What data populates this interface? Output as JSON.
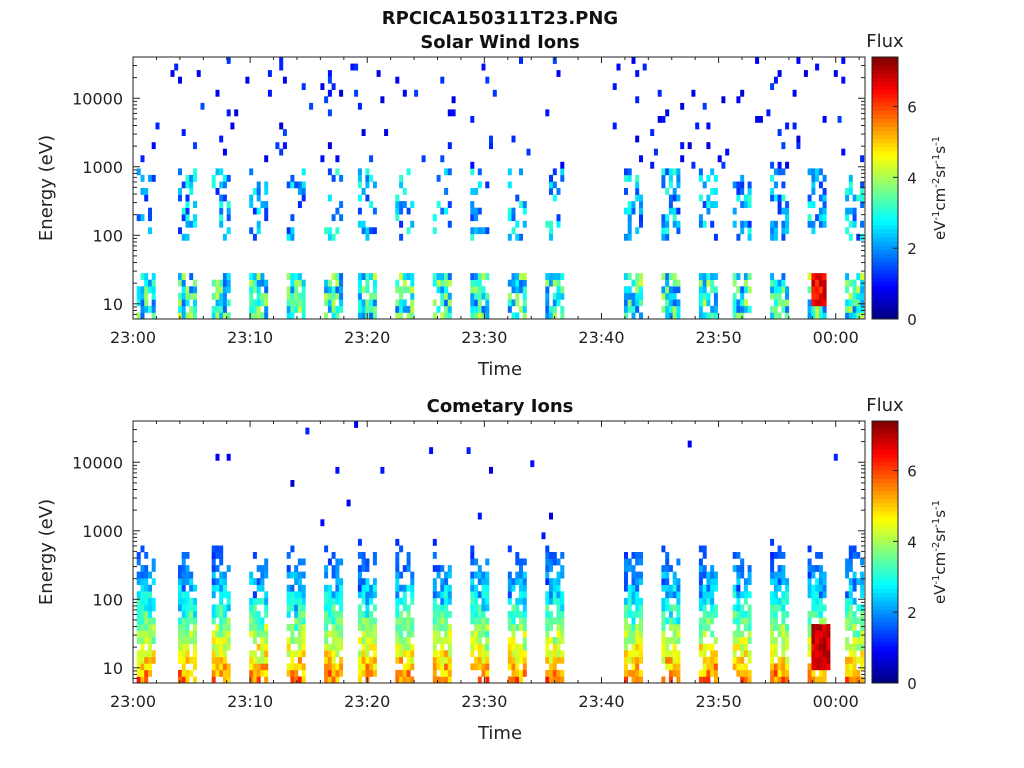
{
  "figure_title": "RPCICA150311T23.PNG",
  "colors": {
    "colormap": [
      "#00007f",
      "#0000ff",
      "#007fff",
      "#00ffff",
      "#7fff7f",
      "#ffff00",
      "#ff7f00",
      "#ff0000",
      "#7f0000"
    ]
  },
  "chart_data": [
    {
      "type": "heatmap",
      "title": "Solar Wind Ions",
      "xlabel": "Time",
      "ylabel": "Energy (eV)",
      "x_tick_labels": [
        "23:00",
        "23:10",
        "23:20",
        "23:30",
        "23:40",
        "23:50",
        "00:00"
      ],
      "x_tick_minutes": [
        0,
        10,
        20,
        30,
        40,
        50,
        60
      ],
      "xlim_minutes": [
        0,
        62.5
      ],
      "y_scale": "log",
      "y_tick_labels": [
        "10",
        "100",
        "1000",
        "10000"
      ],
      "y_tick_values": [
        10,
        100,
        1000,
        10000
      ],
      "ylim": [
        6,
        40000
      ],
      "colorbar": {
        "label": "Flux",
        "unit": "eV-1cm-2sr-1s-1",
        "tick_labels": [
          "0",
          "2",
          "4",
          "6"
        ],
        "tick_values": [
          0,
          2,
          4,
          6
        ],
        "range": [
          0,
          7.4
        ]
      },
      "sweep_start_minutes": [
        0.2,
        3.6,
        6.7,
        9.8,
        13.0,
        16.1,
        19.2,
        22.4,
        25.5,
        28.6,
        31.8,
        34.9,
        41.8,
        45.0,
        48.1,
        51.2,
        54.3,
        57.5,
        60.6
      ],
      "data_gap_minutes": [
        37.3,
        40.7
      ],
      "low_energy_band_eV": [
        6,
        30
      ],
      "low_energy_peak_flux": 4.3,
      "mid_band_eV": [
        90,
        900
      ],
      "mid_band_peak_flux": 3.2,
      "peak": {
        "time_minutes": 58.5,
        "energy_eV": 15,
        "flux": 7.0
      }
    },
    {
      "type": "heatmap",
      "title": "Cometary Ions",
      "xlabel": "Time",
      "ylabel": "Energy (eV)",
      "x_tick_labels": [
        "23:00",
        "23:10",
        "23:20",
        "23:30",
        "23:40",
        "23:50",
        "00:00"
      ],
      "x_tick_minutes": [
        0,
        10,
        20,
        30,
        40,
        50,
        60
      ],
      "xlim_minutes": [
        0,
        62.5
      ],
      "y_scale": "log",
      "y_tick_labels": [
        "10",
        "100",
        "1000",
        "10000"
      ],
      "y_tick_values": [
        10,
        100,
        1000,
        10000
      ],
      "ylim": [
        6,
        40000
      ],
      "colorbar": {
        "label": "Flux",
        "unit": "eV-1cm-2sr-1s-1",
        "tick_labels": [
          "0",
          "2",
          "4",
          "6"
        ],
        "tick_values": [
          0,
          2,
          4,
          6
        ],
        "range": [
          0,
          7.4
        ]
      },
      "sweep_start_minutes": [
        0.2,
        3.6,
        6.7,
        9.8,
        13.0,
        16.1,
        19.2,
        22.4,
        25.5,
        28.6,
        31.8,
        34.9,
        41.8,
        45.0,
        48.1,
        51.2,
        54.3,
        57.5,
        60.6
      ],
      "data_gap_minutes": [
        37.3,
        40.7
      ],
      "low_energy_band_eV": [
        6,
        30
      ],
      "low_energy_peak_flux": 6.3,
      "upper_envelope_eV": [
        100,
        600
      ],
      "peak": {
        "time_minutes": 58.5,
        "energy_eV": 15,
        "flux": 7.2
      }
    }
  ]
}
